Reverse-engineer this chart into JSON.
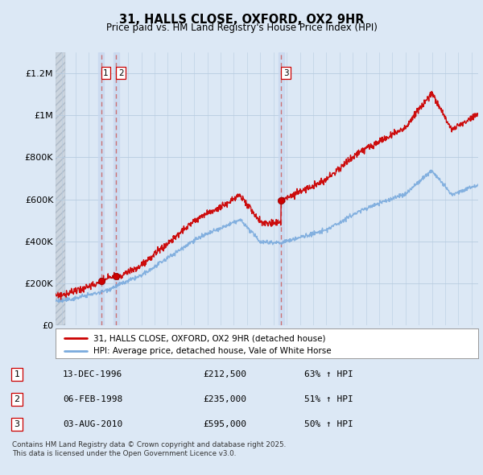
{
  "title": "31, HALLS CLOSE, OXFORD, OX2 9HR",
  "subtitle": "Price paid vs. HM Land Registry's House Price Index (HPI)",
  "hpi_label": "HPI: Average price, detached house, Vale of White Horse",
  "property_label": "31, HALLS CLOSE, OXFORD, OX2 9HR (detached house)",
  "footer": "Contains HM Land Registry data © Crown copyright and database right 2025.\nThis data is licensed under the Open Government Licence v3.0.",
  "sales": [
    {
      "num": 1,
      "date": "13-DEC-1996",
      "price": 212500,
      "pct": "63%",
      "dir": "↑"
    },
    {
      "num": 2,
      "date": "06-FEB-1998",
      "price": 235000,
      "pct": "51%",
      "dir": "↑"
    },
    {
      "num": 3,
      "date": "03-AUG-2010",
      "price": 595000,
      "pct": "50%",
      "dir": "↑"
    }
  ],
  "sale_years": [
    1996.96,
    1998.09,
    2010.59
  ],
  "sale_prices": [
    212500,
    235000,
    595000
  ],
  "ylim": [
    0,
    1300000
  ],
  "yticks": [
    0,
    200000,
    400000,
    600000,
    800000,
    1000000,
    1200000
  ],
  "ytick_labels": [
    "£0",
    "£200K",
    "£400K",
    "£600K",
    "£800K",
    "£1M",
    "£1.2M"
  ],
  "xmin": 1993.5,
  "xmax": 2025.5,
  "property_color": "#cc0000",
  "hpi_color": "#7aaadd",
  "background_color": "#dce8f5",
  "plot_bg_color": "#dce8f5",
  "vline_color": "#cc6666",
  "vband_color": "#c8d8f0",
  "grid_color": "#b8cce0",
  "hatch_color": "#aabbcc"
}
